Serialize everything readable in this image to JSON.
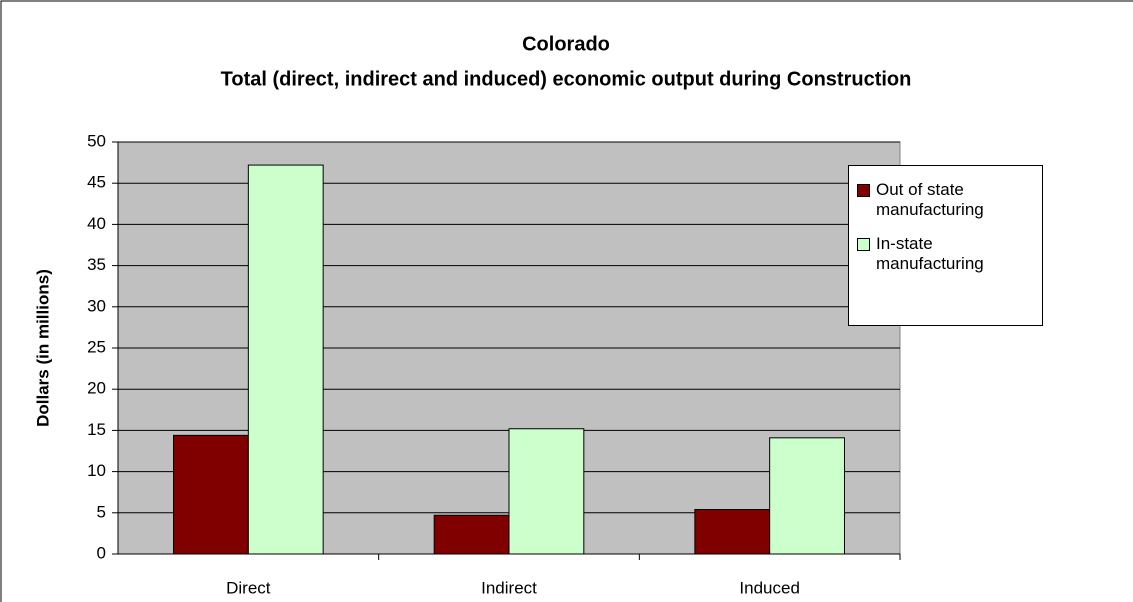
{
  "chart_data": {
    "type": "bar",
    "title": "Colorado",
    "subtitle": "Total (direct, indirect and induced) economic output during Construction",
    "y_label": "Dollars (in millions)",
    "categories": [
      "Direct",
      "Indirect",
      "Induced"
    ],
    "series": [
      {
        "name": "Out of state manufacturing",
        "color": "#800000",
        "values": [
          14.4,
          4.7,
          5.4
        ]
      },
      {
        "name": "In-state manufacturing",
        "color": "#ccffcc",
        "values": [
          47.2,
          15.2,
          14.1
        ]
      }
    ],
    "ylim": [
      0,
      50
    ],
    "yticks": [
      0,
      5,
      10,
      15,
      20,
      25,
      30,
      35,
      40,
      45,
      50
    ],
    "grid": true,
    "legend": "right",
    "plot_background": "#c0c0c0"
  }
}
